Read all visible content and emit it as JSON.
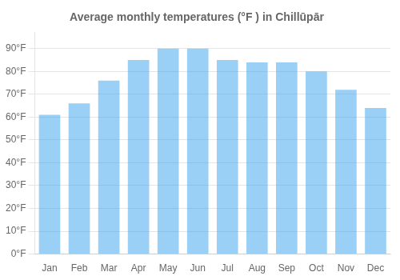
{
  "chart_data": {
    "type": "bar",
    "title": "Average monthly temperatures (°F ) in Chillūpār",
    "categories": [
      "Jan",
      "Feb",
      "Mar",
      "Apr",
      "May",
      "Jun",
      "Jul",
      "Aug",
      "Sep",
      "Oct",
      "Nov",
      "Dec"
    ],
    "values": [
      61,
      66,
      76,
      85,
      90,
      90,
      85,
      84,
      84,
      80,
      72,
      64
    ],
    "ylim": [
      0,
      97
    ],
    "yticks": [
      {
        "value": 0,
        "label": "0°F"
      },
      {
        "value": 10,
        "label": "10°F"
      },
      {
        "value": 20,
        "label": "20°F"
      },
      {
        "value": 30,
        "label": "30°F"
      },
      {
        "value": 40,
        "label": "40°F"
      },
      {
        "value": 50,
        "label": "50°F"
      },
      {
        "value": 60,
        "label": "60°F"
      },
      {
        "value": 70,
        "label": "70°F"
      },
      {
        "value": 80,
        "label": "80°F"
      },
      {
        "value": 90,
        "label": "90°F"
      }
    ],
    "grid": true
  }
}
